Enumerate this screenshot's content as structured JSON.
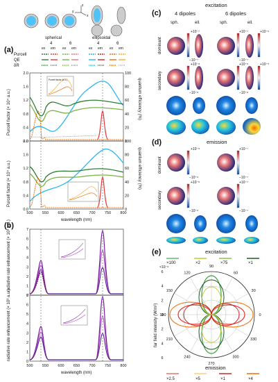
{
  "panel_letters": {
    "a": "(a)",
    "b": "(b)",
    "c": "(c)",
    "d": "(d)",
    "e": "(e)"
  },
  "top_legend": {
    "spherical": "spherical",
    "ellipsoidal": "ellipsoidal",
    "n4": "4",
    "n6": "6",
    "n4b": "4",
    "n6b": "6",
    "ex1": "ex",
    "em1": "em",
    "ex2": "ex",
    "em2": "em",
    "ex3": "ex",
    "em3": "em",
    "ex4": "ex",
    "em4": "em",
    "purcell": "Purcell",
    "qe": "QE",
    "dr": "δR",
    "axis_z": "z",
    "axis_y": "y",
    "axis_x": "x",
    "colors": {
      "sph4": "#2e7d32",
      "sph6": "#7cb342",
      "ell4": "#29b6f6",
      "ell6": "#ef6c00",
      "em": "#e53935",
      "orange": "#ffa726"
    }
  },
  "panel_a": {
    "ylabel_left_top": "Purcell factor (× 10⁴ a.u.)",
    "ylabel_left_bottom": "Purcell factor (× 10⁴ a.u.)",
    "ylabel_right_top": "quantum efficiency (%)",
    "ylabel_right_bottom": "quantum efficiency (%)",
    "xlabel": "wavelength (nm)",
    "left_ticks": [
      "0.0",
      "0.4",
      "0.8",
      "1.2",
      "1.6",
      "2.0"
    ],
    "right_ticks": [
      "0",
      "20",
      "40",
      "60",
      "80",
      "100"
    ],
    "x_ticks": [
      "500",
      "550",
      "600",
      "650",
      "700",
      "750",
      "800"
    ],
    "inset_label": "Purcell factor (a.u.)",
    "inset_xlabel": "wavelength (nm)",
    "inset_ylabel": "Purcell factor"
  },
  "panel_b": {
    "ylabel_top": "radiative rate enhancement (× 10³ a.u.)",
    "ylabel_bottom": "radiative rate enhancement (× 10³ a.u.)",
    "xlabel": "wavelength (nm)",
    "top_ticks": [
      "0",
      "1",
      "2",
      "3",
      "4",
      "5",
      "6",
      "7"
    ],
    "bottom_ticks": [
      "0",
      "1",
      "2",
      "3",
      "4",
      "5",
      "6",
      "7"
    ],
    "x_ticks": [
      "500",
      "550",
      "600",
      "650",
      "700",
      "750",
      "800"
    ],
    "inset_ylabel": "radiative rate enhancement",
    "inset_xlabel": "wavelength (nm)",
    "inset_ticks": [
      "600",
      "700",
      "800"
    ]
  },
  "panel_c": {
    "title": "excitation",
    "col1": "4 dipoles",
    "col2": "6 dipoles",
    "sph": "sph.",
    "ell": "ell.",
    "sph2": "sph.",
    "ell2": "ell.",
    "row1": "dominant",
    "row2": "secondary",
    "scale_top": [
      "+10⁻⁷",
      "+10⁻⁶",
      "+10⁻⁷",
      "+10⁻⁶"
    ],
    "scale_bot": [
      "−10⁻⁷",
      "−10⁻⁶",
      "−10⁻⁷",
      "−10⁻⁶"
    ],
    "scale2_top": [
      "+10⁻⁸",
      "+10⁻⁵",
      "+10⁻⁶",
      "+10⁻⁵"
    ],
    "scale2_bot": [
      "−10⁻⁸",
      "−10⁻⁵",
      "−10⁻⁶",
      "−10⁻⁵"
    ]
  },
  "panel_d": {
    "title": "emission",
    "row1": "dominant",
    "row2": "secondary",
    "scale_top": [
      "+10⁻⁶",
      "+10⁻⁷"
    ],
    "scale_bot": [
      "−10⁻⁶",
      "−10⁻⁷"
    ],
    "scale2_top": [
      "+10⁻⁶",
      "+10⁻⁷"
    ],
    "scale2_bot": [
      "−10⁻⁶",
      "−10⁻⁷"
    ]
  },
  "panel_e": {
    "title_top": "excitation",
    "title_bottom": "emission",
    "ex_mult": [
      "×100",
      "×2",
      "×75",
      "×1"
    ],
    "em_mult": [
      "×2.5",
      "×5",
      "×1",
      "×4"
    ],
    "ylabel": "far field intensity (W/m²)",
    "exp": "×10⁻⁸",
    "angles": [
      "90",
      "60",
      "30",
      "0",
      "330",
      "300",
      "270",
      "240",
      "210",
      "180",
      "150",
      "120"
    ],
    "r_ticks": [
      "6",
      "4",
      "2",
      "0",
      "2",
      "4",
      "6"
    ]
  }
}
